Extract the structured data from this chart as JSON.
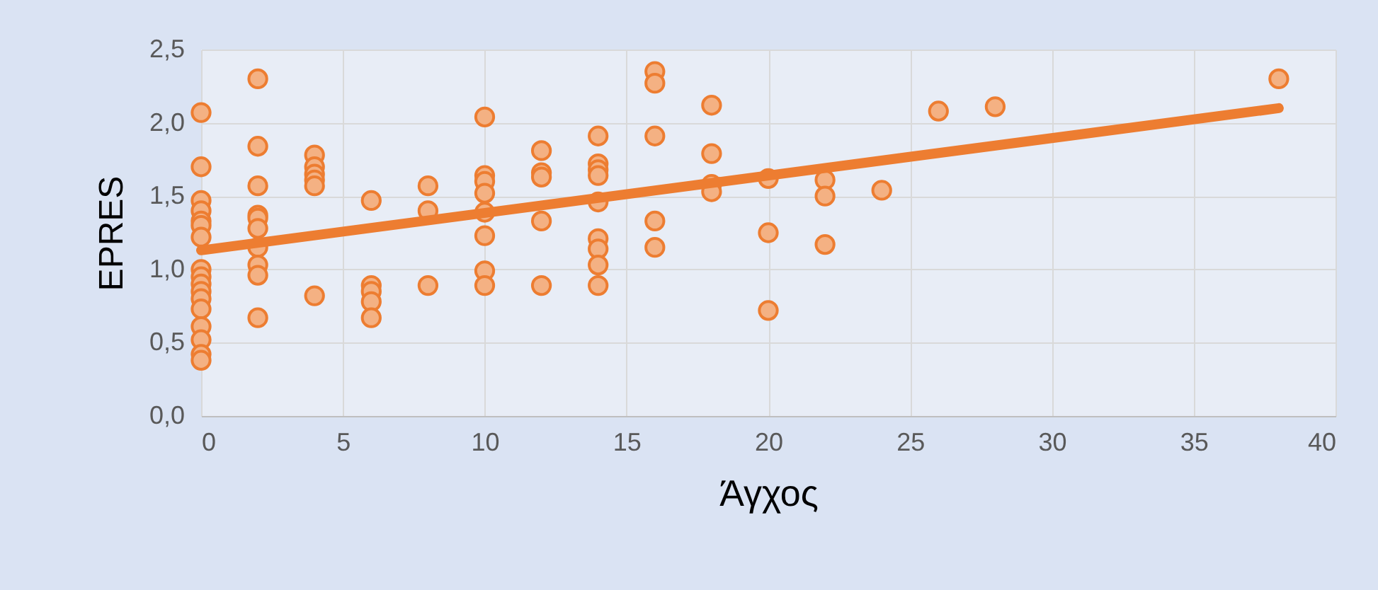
{
  "chart_data": {
    "type": "scatter",
    "xlabel": "Άγχος",
    "ylabel": "EPRES",
    "xlim": [
      0,
      40
    ],
    "xticks": [
      0,
      5,
      10,
      15,
      20,
      25,
      30,
      35,
      40
    ],
    "ylim": [
      0,
      2.5
    ],
    "yticks": [
      {
        "value": 0,
        "label": "0,0"
      },
      {
        "value": 0.5,
        "label": "0,5"
      },
      {
        "value": 1,
        "label": "1,0"
      },
      {
        "value": 1.5,
        "label": "1,5"
      },
      {
        "value": 2,
        "label": "2,0"
      },
      {
        "value": 2.5,
        "label": "2,5"
      }
    ],
    "grid": true,
    "marker": "circle",
    "x": [
      0,
      0,
      0,
      0,
      0,
      0,
      0,
      0,
      0,
      0,
      0,
      0,
      0,
      0,
      0,
      0,
      0,
      2,
      2,
      2,
      2,
      2,
      2,
      2,
      2,
      2,
      2,
      4,
      4,
      4,
      4,
      4,
      4,
      6,
      6,
      6,
      6,
      6,
      8,
      8,
      8,
      10,
      10,
      10,
      10,
      10,
      10,
      10,
      10,
      12,
      12,
      12,
      12,
      12,
      14,
      14,
      14,
      14,
      14,
      14,
      14,
      14,
      14,
      16,
      16,
      16,
      16,
      16,
      18,
      18,
      18,
      18,
      20,
      20,
      20,
      22,
      22,
      22,
      24,
      26,
      28,
      38
    ],
    "series": [
      {
        "color": "#f4b183",
        "values": [
          2.07,
          1.7,
          1.47,
          1.4,
          1.33,
          1.3,
          1.22,
          1.0,
          0.95,
          0.9,
          0.85,
          0.8,
          0.73,
          0.61,
          0.52,
          0.42,
          0.38,
          2.3,
          1.84,
          1.57,
          1.37,
          1.35,
          1.28,
          1.15,
          1.03,
          0.96,
          0.67,
          1.78,
          1.7,
          1.65,
          1.61,
          1.57,
          0.82,
          1.47,
          0.89,
          0.85,
          0.78,
          0.67,
          1.57,
          1.4,
          0.89,
          2.04,
          1.64,
          1.6,
          1.52,
          1.39,
          1.23,
          0.99,
          0.89,
          1.81,
          1.66,
          1.63,
          1.33,
          0.89,
          1.91,
          1.72,
          1.68,
          1.64,
          1.46,
          1.21,
          1.14,
          1.03,
          0.89,
          2.35,
          2.27,
          1.91,
          1.33,
          1.15,
          2.12,
          1.79,
          1.58,
          1.53,
          1.62,
          1.25,
          0.72,
          1.61,
          1.5,
          1.17,
          1.54,
          2.08,
          2.11,
          2.3
        ]
      },
      {
        "type": "line",
        "marker": "none",
        "color": "#ed7d31",
        "x": [
          0,
          38
        ],
        "values": [
          1.13,
          2.1
        ]
      }
    ]
  }
}
